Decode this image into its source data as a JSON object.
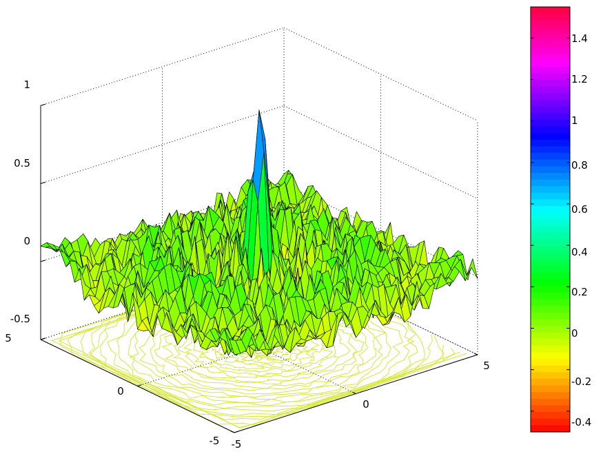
{
  "chart_data": {
    "type": "surface",
    "title": "",
    "xlabel": "",
    "ylabel": "",
    "zlabel": "",
    "xlim": [
      -5,
      5
    ],
    "ylim": [
      -5,
      5
    ],
    "zlim": [
      -0.5,
      1
    ],
    "x_ticks": [
      "-5",
      "0",
      "5"
    ],
    "y_ticks": [
      "-5",
      "0",
      "5"
    ],
    "z_ticks": [
      "-0.5",
      "0",
      "0.5",
      "1"
    ],
    "grid": "on",
    "contour_projection_plane": -0.5,
    "peak": {
      "x": 0,
      "y": 0,
      "z": 1.0
    },
    "colorbar": {
      "range": [
        -0.5,
        1.55
      ],
      "ticks": [
        "-0.4",
        "-0.2",
        "0",
        "0.2",
        "0.4",
        "0.6",
        "0.8",
        "1",
        "1.2",
        "1.4"
      ],
      "colormap": "hsv"
    }
  }
}
